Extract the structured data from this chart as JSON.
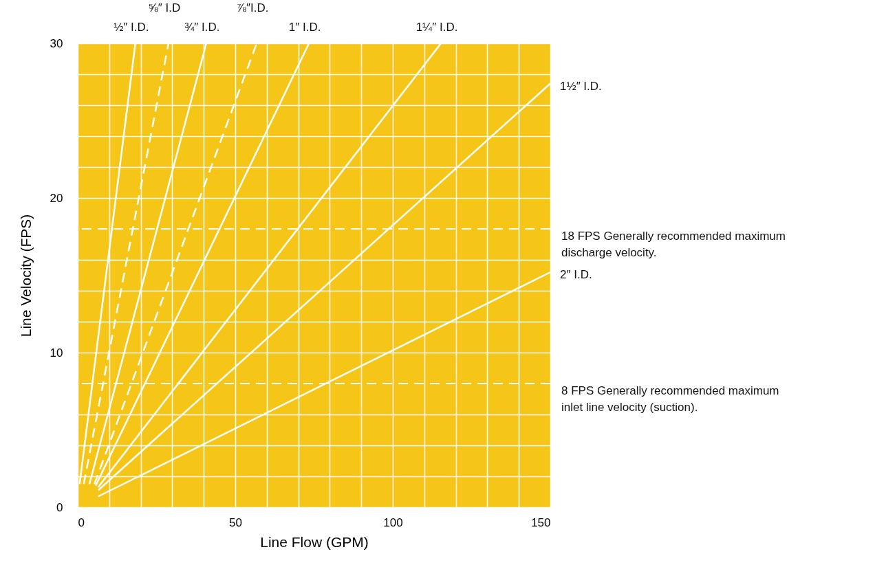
{
  "chart_data": {
    "type": "line",
    "xlabel": "Line Flow (GPM)",
    "ylabel": "Line Velocity (FPS)",
    "xlim": [
      0,
      150
    ],
    "ylim": [
      0,
      30
    ],
    "xticks": [
      0,
      {
        "value": 10,
        "label": null
      },
      {
        "value": 20,
        "label": null
      },
      {
        "value": 30,
        "label": null
      },
      {
        "value": 40,
        "label": null
      },
      50,
      {
        "value": 60,
        "label": null
      },
      {
        "value": 70,
        "label": null
      },
      {
        "value": 80,
        "label": null
      },
      {
        "value": 90,
        "label": null
      },
      100,
      {
        "value": 110,
        "label": null
      },
      {
        "value": 120,
        "label": null
      },
      {
        "value": 130,
        "label": null
      },
      {
        "value": 140,
        "label": null
      },
      150
    ],
    "yticks": [
      0,
      {
        "value": 2,
        "label": null
      },
      {
        "value": 4,
        "label": null
      },
      {
        "value": 6,
        "label": null
      },
      10,
      {
        "value": 12,
        "label": null
      },
      {
        "value": 14,
        "label": null
      },
      {
        "value": 16,
        "label": null
      },
      20,
      {
        "value": 22,
        "label": null
      },
      {
        "value": 24,
        "label": null
      },
      {
        "value": 26,
        "label": null
      },
      {
        "value": 28,
        "label": null
      },
      30
    ],
    "grid": true,
    "line_style": "solid",
    "series": [
      {
        "name": "½″ I.D.",
        "color": "#ffffff",
        "x": [
          0.6,
          18.3
        ],
        "values": [
          1.5,
          30
        ]
      },
      {
        "name": "⅝″ I.D",
        "color": "#ffffff",
        "line_style": "dashed",
        "x": [
          1.9,
          28.8
        ],
        "values": [
          1.5,
          30
        ]
      },
      {
        "name": "¾″ I.D.",
        "color": "#ffffff",
        "x": [
          3.7,
          40.8
        ],
        "values": [
          1.5,
          30
        ]
      },
      {
        "name": "⅞″I.D.",
        "color": "#ffffff",
        "line_style": "dashed",
        "x": [
          5.3,
          56.8
        ],
        "values": [
          1.5,
          30
        ]
      },
      {
        "name": "1″ I.D.",
        "color": "#ffffff",
        "x": [
          5.7,
          73.4
        ],
        "values": [
          1.4,
          30
        ]
      },
      {
        "name": "1¼″ I.D.",
        "color": "#ffffff",
        "x": [
          6.5,
          115.3
        ],
        "values": [
          1.3,
          30
        ]
      },
      {
        "name": "1½″ I.D.",
        "color": "#ffffff",
        "x": [
          6.5,
          150
        ],
        "values": [
          1.1,
          27.4
        ]
      },
      {
        "name": "2″ I.D.",
        "color": "#ffffff",
        "x": [
          6.5,
          150
        ],
        "values": [
          0.7,
          15.2
        ]
      }
    ],
    "ref_lines": [
      {
        "axis": "y",
        "value": 18,
        "label": "18 FPS  Generally recommended maximum\n           discharge velocity.",
        "color": "#ffffff",
        "line_style": "dashed"
      },
      {
        "axis": "y",
        "value": 8,
        "label": "8 FPS  Generally recommended maximum\n          inlet line velocity (suction).",
        "color": "#ffffff",
        "line_style": "dashed"
      }
    ]
  }
}
